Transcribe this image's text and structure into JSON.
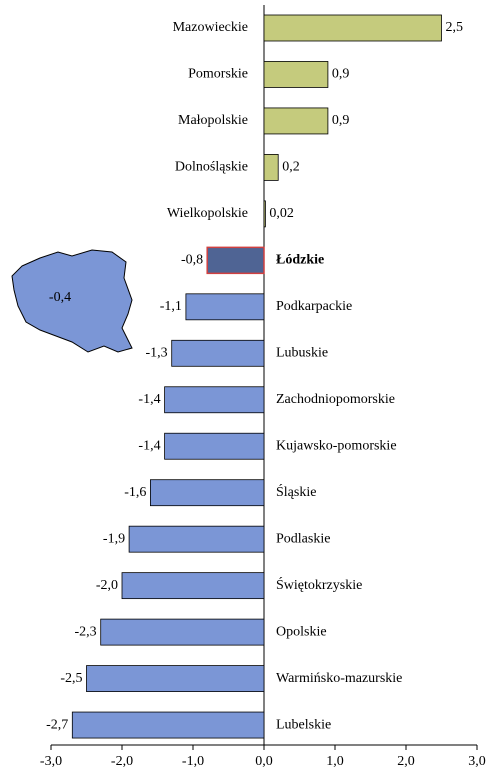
{
  "chart_data": {
    "type": "hbar",
    "categories": [
      "Mazowieckie",
      "Pomorskie",
      "Małopolskie",
      "Dolnośląskie",
      "Wielkopolskie",
      "Łódzkie",
      "Podkarpackie",
      "Lubuskie",
      "Zachodniopomorskie",
      "Kujawsko-pomorskie",
      "Śląskie",
      "Podlaskie",
      "Świętokrzyskie",
      "Opolskie",
      "Warmińsko-mazurskie",
      "Lubelskie"
    ],
    "values": [
      2.5,
      0.9,
      0.9,
      0.2,
      0.02,
      -0.8,
      -1.1,
      -1.3,
      -1.4,
      -1.4,
      -1.6,
      -1.9,
      -2.0,
      -2.3,
      -2.5,
      -2.7
    ],
    "value_labels": [
      "2,5",
      "0,9",
      "0,9",
      "0,2",
      "0,02",
      "-0,8",
      "-1,1",
      "-1,3",
      "-1,4",
      "-1,4",
      "-1,6",
      "-1,9",
      "-2,0",
      "-2,3",
      "-2,5",
      "-2,7"
    ],
    "positive_color": "#c5cb7d",
    "negative_color": "#7b96d6",
    "highlight": "Łódzkie",
    "highlight_color": "#4f6494",
    "highlight_border": "#d04040",
    "xlim": [
      -3,
      3
    ],
    "xticks": [
      {
        "value": -3,
        "label": "-3,0"
      },
      {
        "value": -2,
        "label": "-2,0"
      },
      {
        "value": -1,
        "label": "-1,0"
      },
      {
        "value": 0,
        "label": "0,0"
      },
      {
        "value": 1,
        "label": "1,0"
      },
      {
        "value": 2,
        "label": "2,0"
      },
      {
        "value": 3,
        "label": "3,0"
      }
    ],
    "grid": false,
    "annotation": {
      "text": "-0,4"
    }
  }
}
